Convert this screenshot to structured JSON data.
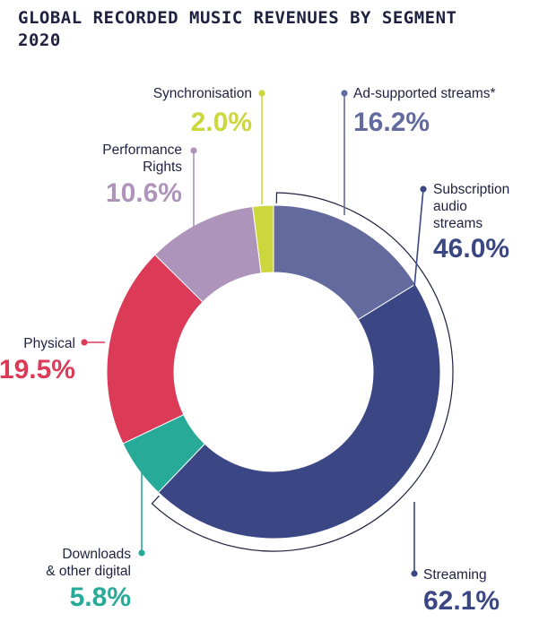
{
  "title_lines": [
    "GLOBAL RECORDED MUSIC REVENUES BY SEGMENT",
    "2020"
  ],
  "chart_data": {
    "type": "pie",
    "variant": "donut",
    "title": "GLOBAL RECORDED MUSIC REVENUES BY SEGMENT 2020",
    "unit": "%",
    "slices": [
      {
        "label": "Ad-supported streams*",
        "value": 16.2,
        "display": "16.2%",
        "color": "#636a9d"
      },
      {
        "label": "Subscription audio streams",
        "value": 46.0,
        "display": "46.0%",
        "color": "#3a4784"
      },
      {
        "label": "Downloads & other digital",
        "value": 5.8,
        "display": "5.8%",
        "color": "#27ab98"
      },
      {
        "label": "Physical",
        "value": 19.5,
        "display": "19.5%",
        "color": "#dc3b58"
      },
      {
        "label": "Performance Rights",
        "value": 10.6,
        "display": "10.6%",
        "color": "#ae94bb"
      },
      {
        "label": "Synchronisation",
        "value": 2.0,
        "display": "2.0%",
        "color": "#ccd63d"
      }
    ],
    "group_bracket": {
      "label": "Streaming",
      "value": 62.1,
      "display": "62.1%",
      "color": "#3a4784",
      "covers": [
        "Ad-supported streams*",
        "Subscription audio streams"
      ]
    }
  }
}
